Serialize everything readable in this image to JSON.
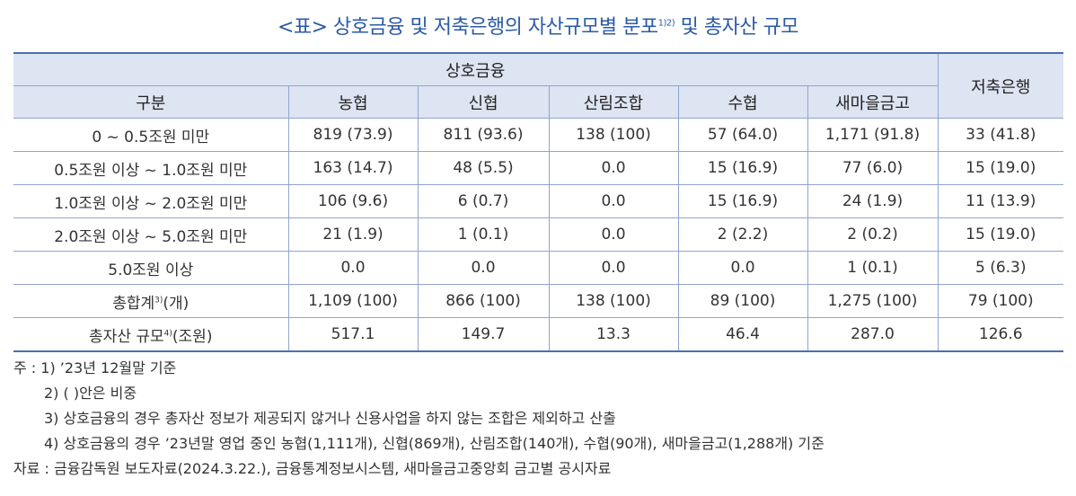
{
  "title": {
    "text": "<표> 상호금융 및 저축은행의 자산규모별 분포",
    "sup": "1)2)",
    "suffix": " 및 총자산 규모"
  },
  "table": {
    "group_header": "상호금융",
    "col_first": "구분",
    "columns": [
      "농협",
      "신협",
      "산림조합",
      "수협",
      "새마을금고"
    ],
    "col_last": "저축은행",
    "rows": [
      {
        "label": "0 ~ 0.5조원 미만",
        "values": [
          "819 (73.9)",
          "811 (93.6)",
          "138 (100)",
          "57 (64.0)",
          "1,171 (91.8)",
          "33 (41.8)"
        ]
      },
      {
        "label": "0.5조원 이상 ~ 1.0조원 미만",
        "values": [
          "163 (14.7)",
          "48 (5.5)",
          "0.0",
          "15 (16.9)",
          "77 (6.0)",
          "15 (19.0)"
        ]
      },
      {
        "label": "1.0조원 이상 ~ 2.0조원 미만",
        "values": [
          "106 (9.6)",
          "6 (0.7)",
          "0.0",
          "15 (16.9)",
          "24 (1.9)",
          "11 (13.9)"
        ]
      },
      {
        "label": "2.0조원 이상 ~ 5.0조원 미만",
        "values": [
          "21 (1.9)",
          "1 (0.1)",
          "0.0",
          "2 (2.2)",
          "2 (0.2)",
          "15 (19.0)"
        ]
      },
      {
        "label": "5.0조원 이상",
        "values": [
          "0.0",
          "0.0",
          "0.0",
          "0.0",
          "1 (0.1)",
          "5 (6.3)"
        ]
      }
    ],
    "total_row": {
      "label": "총합계",
      "sup": "3)",
      "suffix": "(개)",
      "values": [
        "1,109 (100)",
        "866 (100)",
        "138 (100)",
        "89 (100)",
        "1,275 (100)",
        "79 (100)"
      ]
    },
    "asset_row": {
      "label": "총자산 규모",
      "sup": "4)",
      "suffix": "(조원)",
      "values": [
        "517.1",
        "149.7",
        "13.3",
        "46.4",
        "287.0",
        "126.6"
      ]
    }
  },
  "notes": {
    "n1": "주 : 1) ’23년 12월말 기준",
    "n2": "2) (   )안은 비중",
    "n3": "3) 상호금융의 경우 총자산 정보가 제공되지 않거나 신용사업을 하지 않는 조합은 제외하고 산출",
    "n4": "4) 상호금융의 경우 ’23년말 영업 중인 농협(1,111개), 신협(869개), 산림조합(140개), 수협(90개), 새마을금고(1,288개) 기준",
    "source": "자료 : 금융감독원 보도자료(2024.3.22.), 금융통계정보시스템, 새마을금고중앙회 금고별 공시자료"
  }
}
